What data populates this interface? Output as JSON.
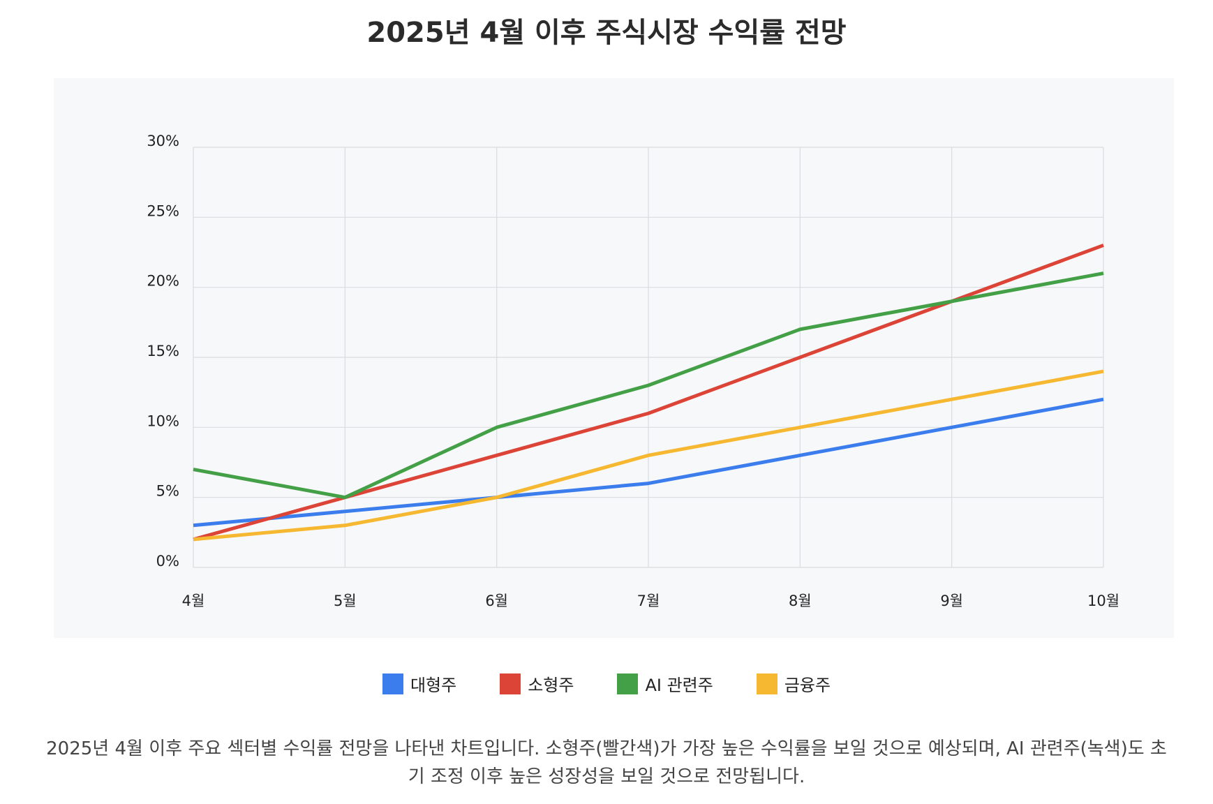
{
  "page": {
    "title": "2025년 4월 이후 주식시장 수익률 전망",
    "caption": "2025년 4월 이후 주요 섹터별 수익률 전망을 나타낸 차트입니다. 소형주(빨간색)가 가장 높은 수익률을 보일 것으로 예상되며, AI 관련주(녹색)도 초기 조정 이후 높은 성장성을 보일 것으로 전망됩니다."
  },
  "chart_data": {
    "type": "line",
    "title": "",
    "xlabel": "",
    "ylabel": "",
    "categories": [
      "4월",
      "5월",
      "6월",
      "7월",
      "8월",
      "9월",
      "10월"
    ],
    "ylim": [
      0,
      30
    ],
    "yticks": [
      0,
      5,
      10,
      15,
      20,
      25,
      30
    ],
    "ytick_labels": [
      "0%",
      "5%",
      "10%",
      "15%",
      "20%",
      "25%",
      "30%"
    ],
    "grid": true,
    "legend_position": "bottom",
    "series": [
      {
        "name": "대형주",
        "color": "#3b7ded",
        "values": [
          3,
          4,
          5,
          6,
          8,
          10,
          12
        ]
      },
      {
        "name": "소형주",
        "color": "#db4437",
        "values": [
          2,
          5,
          8,
          11,
          15,
          19,
          23
        ]
      },
      {
        "name": "AI 관련주",
        "color": "#43a047",
        "values": [
          7,
          5,
          10,
          13,
          17,
          19,
          21
        ]
      },
      {
        "name": "금융주",
        "color": "#f6b731",
        "values": [
          2,
          3,
          5,
          8,
          10,
          12,
          14
        ]
      }
    ]
  }
}
